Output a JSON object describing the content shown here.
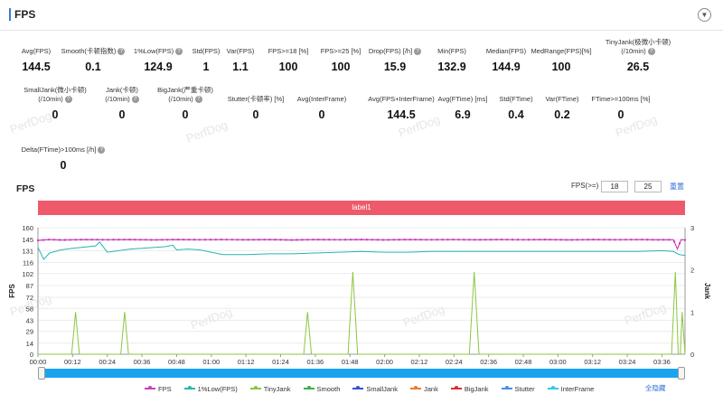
{
  "header": {
    "title": "FPS",
    "collapse_icon": "chevron-down-icon"
  },
  "metrics_row1": [
    {
      "label": "Avg(FPS)",
      "value": "144.5",
      "help": false
    },
    {
      "label": "Smooth(卡顿指数)",
      "value": "0.1",
      "help": true
    },
    {
      "label": "1%Low(FPS)",
      "value": "124.9",
      "help": true
    },
    {
      "label": "Std(FPS)",
      "value": "1",
      "help": false
    },
    {
      "label": "Var(FPS)",
      "value": "1.1",
      "help": false
    },
    {
      "label": "FPS>=18 [%]",
      "value": "100",
      "help": false
    },
    {
      "label": "FPS>=25 [%]",
      "value": "100",
      "help": false
    },
    {
      "label": "Drop(FPS) [/h]",
      "value": "15.9",
      "help": true
    },
    {
      "label": "Min(FPS)",
      "value": "132.9",
      "help": false
    },
    {
      "label": "Median(FPS)",
      "value": "144.9",
      "help": false
    },
    {
      "label": "MedRange(FPS)[%]",
      "value": "100",
      "help": false
    },
    {
      "label": "TinyJank(极微小卡顿)",
      "label2": "(/10min)",
      "value": "26.5",
      "help": true
    }
  ],
  "metrics_row2": [
    {
      "label": "SmallJank(微小卡顿)",
      "label2": "(/10min)",
      "value": "0",
      "help": true
    },
    {
      "label": "Jank(卡顿)",
      "label2": "(/10min)",
      "value": "0",
      "help": true
    },
    {
      "label": "BigJank(严重卡顿)",
      "label2": "(/10min)",
      "value": "0",
      "help": true
    },
    {
      "label": "Stutter(卡顿率) [%]",
      "value": "0",
      "help": false
    },
    {
      "label": "Avg(InterFrame)",
      "value": "0",
      "help": false
    },
    {
      "label": "Avg(FPS+InterFrame)",
      "value": "144.5",
      "help": false
    },
    {
      "label": "Avg(FTime) [ms]",
      "value": "6.9",
      "help": false
    },
    {
      "label": "Std(FTime)",
      "value": "0.4",
      "help": false
    },
    {
      "label": "Var(FTime)",
      "value": "0.2",
      "help": false
    },
    {
      "label": "FTime>=100ms [%]",
      "value": "0",
      "help": false
    }
  ],
  "metrics_row3": [
    {
      "label": "Delta(FTime)>100ms [/h]",
      "value": "0",
      "help": true
    }
  ],
  "watermark": "PerfDog",
  "chart": {
    "title": "FPS",
    "filter_label": "FPS(>=)",
    "filter_value_1": "18",
    "filter_value_2": "25",
    "reset_label": "重置",
    "label_bar": "label1",
    "hide_all_label": "全隐藏"
  },
  "colors": {
    "fps": "#c93fc1",
    "smooth": "#3fae49",
    "low1": "#29b6b0",
    "tinyjank": "#8cc63f",
    "smalljank": "#3b4fd6",
    "jank": "#f07a2a",
    "bigjank": "#d9302c",
    "stutter": "#4a8fe7",
    "interframe": "#35c8e8",
    "accent": "#3a7be0",
    "label_bar": "#ee5a6a",
    "scrollbar": "#1aa3ef"
  },
  "chart_data": {
    "type": "line",
    "ylabel": "FPS",
    "y2label": "Jank",
    "ylim": [
      0,
      160
    ],
    "y2lim": [
      0,
      3
    ],
    "yticks": [
      0,
      14,
      29,
      43,
      58,
      72,
      87,
      102,
      116,
      131,
      145,
      160
    ],
    "y2ticks": [
      0,
      1,
      2,
      3
    ],
    "x_ticks": [
      "00:00",
      "00:12",
      "00:24",
      "00:36",
      "00:48",
      "01:00",
      "01:12",
      "01:24",
      "01:36",
      "01:48",
      "02:00",
      "02:12",
      "02:24",
      "02:36",
      "02:48",
      "03:00",
      "03:12",
      "03:24",
      "03:36"
    ],
    "x_range_seconds": [
      0,
      3360
    ],
    "series": [
      {
        "name": "FPS",
        "key": "fps",
        "axis": "left",
        "points": [
          [
            0,
            144
          ],
          [
            60,
            145
          ],
          [
            120,
            144.5
          ],
          [
            240,
            145
          ],
          [
            360,
            144.8
          ],
          [
            480,
            145
          ],
          [
            600,
            144.6
          ],
          [
            720,
            145
          ],
          [
            840,
            144.8
          ],
          [
            960,
            145
          ],
          [
            1080,
            144.7
          ],
          [
            1200,
            145
          ],
          [
            1320,
            144.5
          ],
          [
            1440,
            145
          ],
          [
            1560,
            144.8
          ],
          [
            1680,
            145
          ],
          [
            1800,
            144.6
          ],
          [
            1920,
            145
          ],
          [
            2040,
            144.8
          ],
          [
            2160,
            145
          ],
          [
            2280,
            144.7
          ],
          [
            2400,
            145
          ],
          [
            2520,
            144.8
          ],
          [
            2640,
            145
          ],
          [
            2760,
            144.6
          ],
          [
            2880,
            145
          ],
          [
            3000,
            144.8
          ],
          [
            3120,
            145
          ],
          [
            3220,
            144.7
          ],
          [
            3300,
            144.8
          ],
          [
            3320,
            133
          ],
          [
            3340,
            145
          ],
          [
            3360,
            144.5
          ]
        ]
      },
      {
        "name": "1%Low(FPS)",
        "key": "low1",
        "axis": "left",
        "points": [
          [
            0,
            135
          ],
          [
            30,
            120
          ],
          [
            60,
            128
          ],
          [
            120,
            132
          ],
          [
            180,
            134
          ],
          [
            300,
            137
          ],
          [
            320,
            142
          ],
          [
            360,
            129
          ],
          [
            420,
            131
          ],
          [
            480,
            133
          ],
          [
            540,
            134
          ],
          [
            600,
            135
          ],
          [
            660,
            136
          ],
          [
            700,
            138
          ],
          [
            720,
            132
          ],
          [
            780,
            133
          ],
          [
            840,
            132
          ],
          [
            900,
            129
          ],
          [
            960,
            126
          ],
          [
            1080,
            126
          ],
          [
            1200,
            127
          ],
          [
            1320,
            127
          ],
          [
            1440,
            128
          ],
          [
            1560,
            129
          ],
          [
            1680,
            130
          ],
          [
            1800,
            129
          ],
          [
            1920,
            129
          ],
          [
            2040,
            130
          ],
          [
            2160,
            130
          ],
          [
            2280,
            130
          ],
          [
            2400,
            130
          ],
          [
            2520,
            130
          ],
          [
            2640,
            130
          ],
          [
            2760,
            130
          ],
          [
            2880,
            130
          ],
          [
            3000,
            130
          ],
          [
            3120,
            130
          ],
          [
            3240,
            131
          ],
          [
            3300,
            130
          ],
          [
            3330,
            126
          ],
          [
            3360,
            125
          ]
        ]
      },
      {
        "name": "TinyJank",
        "key": "tinyjank",
        "axis": "right",
        "points": [
          [
            0,
            0
          ],
          [
            175,
            0
          ],
          [
            195,
            1.0
          ],
          [
            215,
            0
          ],
          [
            430,
            0
          ],
          [
            450,
            1.0
          ],
          [
            470,
            0
          ],
          [
            1380,
            0
          ],
          [
            1400,
            1.0
          ],
          [
            1420,
            0
          ],
          [
            1610,
            0
          ],
          [
            1635,
            1.95
          ],
          [
            1660,
            0
          ],
          [
            2240,
            0
          ],
          [
            2265,
            1.95
          ],
          [
            2290,
            0
          ],
          [
            3290,
            0
          ],
          [
            3310,
            1.95
          ],
          [
            3325,
            0
          ],
          [
            3335,
            0
          ],
          [
            3345,
            1.0
          ],
          [
            3360,
            0
          ]
        ]
      },
      {
        "name": "Smooth",
        "key": "smooth",
        "axis": "left",
        "points": []
      },
      {
        "name": "SmallJank",
        "key": "smalljank",
        "axis": "right",
        "points": []
      },
      {
        "name": "Jank",
        "key": "jank",
        "axis": "right",
        "points": []
      },
      {
        "name": "BigJank",
        "key": "bigjank",
        "axis": "right",
        "points": []
      },
      {
        "name": "Stutter",
        "key": "stutter",
        "axis": "right",
        "points": []
      },
      {
        "name": "InterFrame",
        "key": "interframe",
        "axis": "left",
        "points": []
      }
    ]
  }
}
